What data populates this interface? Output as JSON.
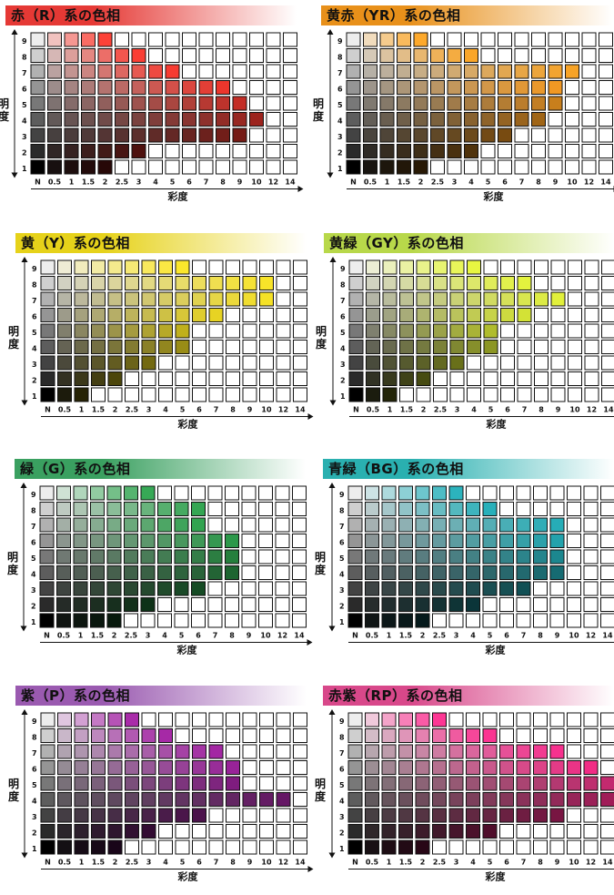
{
  "chroma_ticks": [
    "N",
    "0.5",
    "1",
    "1.5",
    "2",
    "2.5",
    "3",
    "4",
    "5",
    "6",
    "7",
    "8",
    "9",
    "10",
    "12",
    "14"
  ],
  "value_ticks": [
    "9",
    "8",
    "7",
    "6",
    "5",
    "4",
    "3",
    "2",
    "1"
  ],
  "ylabel": "明\n度",
  "xlabel": "彩度",
  "chart_data": [
    {
      "type": "heatmap",
      "title": "赤（R）系の色相",
      "accent": "#e53935",
      "hue_rgb": [
        224,
        40,
        30
      ],
      "max_chroma": [
        4,
        6,
        8,
        11,
        12,
        13,
        12,
        6,
        4
      ]
    },
    {
      "type": "heatmap",
      "title": "黄赤（YR）系の色相",
      "accent": "#e8901a",
      "hue_rgb": [
        230,
        140,
        20
      ],
      "max_chroma": [
        4,
        7,
        13,
        12,
        12,
        11,
        9,
        7,
        4
      ]
    },
    {
      "type": "heatmap",
      "title": "黄（Y）系の色相",
      "accent": "#e6d21a",
      "hue_rgb": [
        220,
        200,
        20
      ],
      "max_chroma": [
        8,
        13,
        13,
        10,
        8,
        8,
        6,
        4,
        2
      ]
    },
    {
      "type": "heatmap",
      "title": "黄緑（GY）系の色相",
      "accent": "#b8d84a",
      "hue_rgb": [
        200,
        215,
        40
      ],
      "max_chroma": [
        7,
        10,
        12,
        10,
        8,
        8,
        6,
        4,
        2
      ]
    },
    {
      "type": "heatmap",
      "title": "緑（G）系の色相",
      "accent": "#3aa060",
      "hue_rgb": [
        30,
        140,
        60
      ],
      "max_chroma": [
        6,
        9,
        9,
        11,
        11,
        11,
        9,
        6,
        4
      ]
    },
    {
      "type": "heatmap",
      "title": "青緑（BG）系の色相",
      "accent": "#2ab0b0",
      "hue_rgb": [
        20,
        150,
        160
      ],
      "max_chroma": [
        6,
        8,
        12,
        12,
        12,
        12,
        10,
        7,
        4
      ]
    },
    {
      "type": "heatmap",
      "title": "紫（P）系の色相",
      "accent": "#9a5ab0",
      "hue_rgb": [
        140,
        20,
        140
      ],
      "max_chroma": [
        5,
        7,
        10,
        11,
        11,
        14,
        9,
        6,
        4
      ]
    },
    {
      "type": "heatmap",
      "title": "赤紫（RP）系の色相",
      "accent": "#d8488a",
      "hue_rgb": [
        230,
        30,
        120
      ],
      "max_chroma": [
        5,
        8,
        12,
        14,
        16,
        15,
        12,
        8,
        4
      ]
    }
  ]
}
